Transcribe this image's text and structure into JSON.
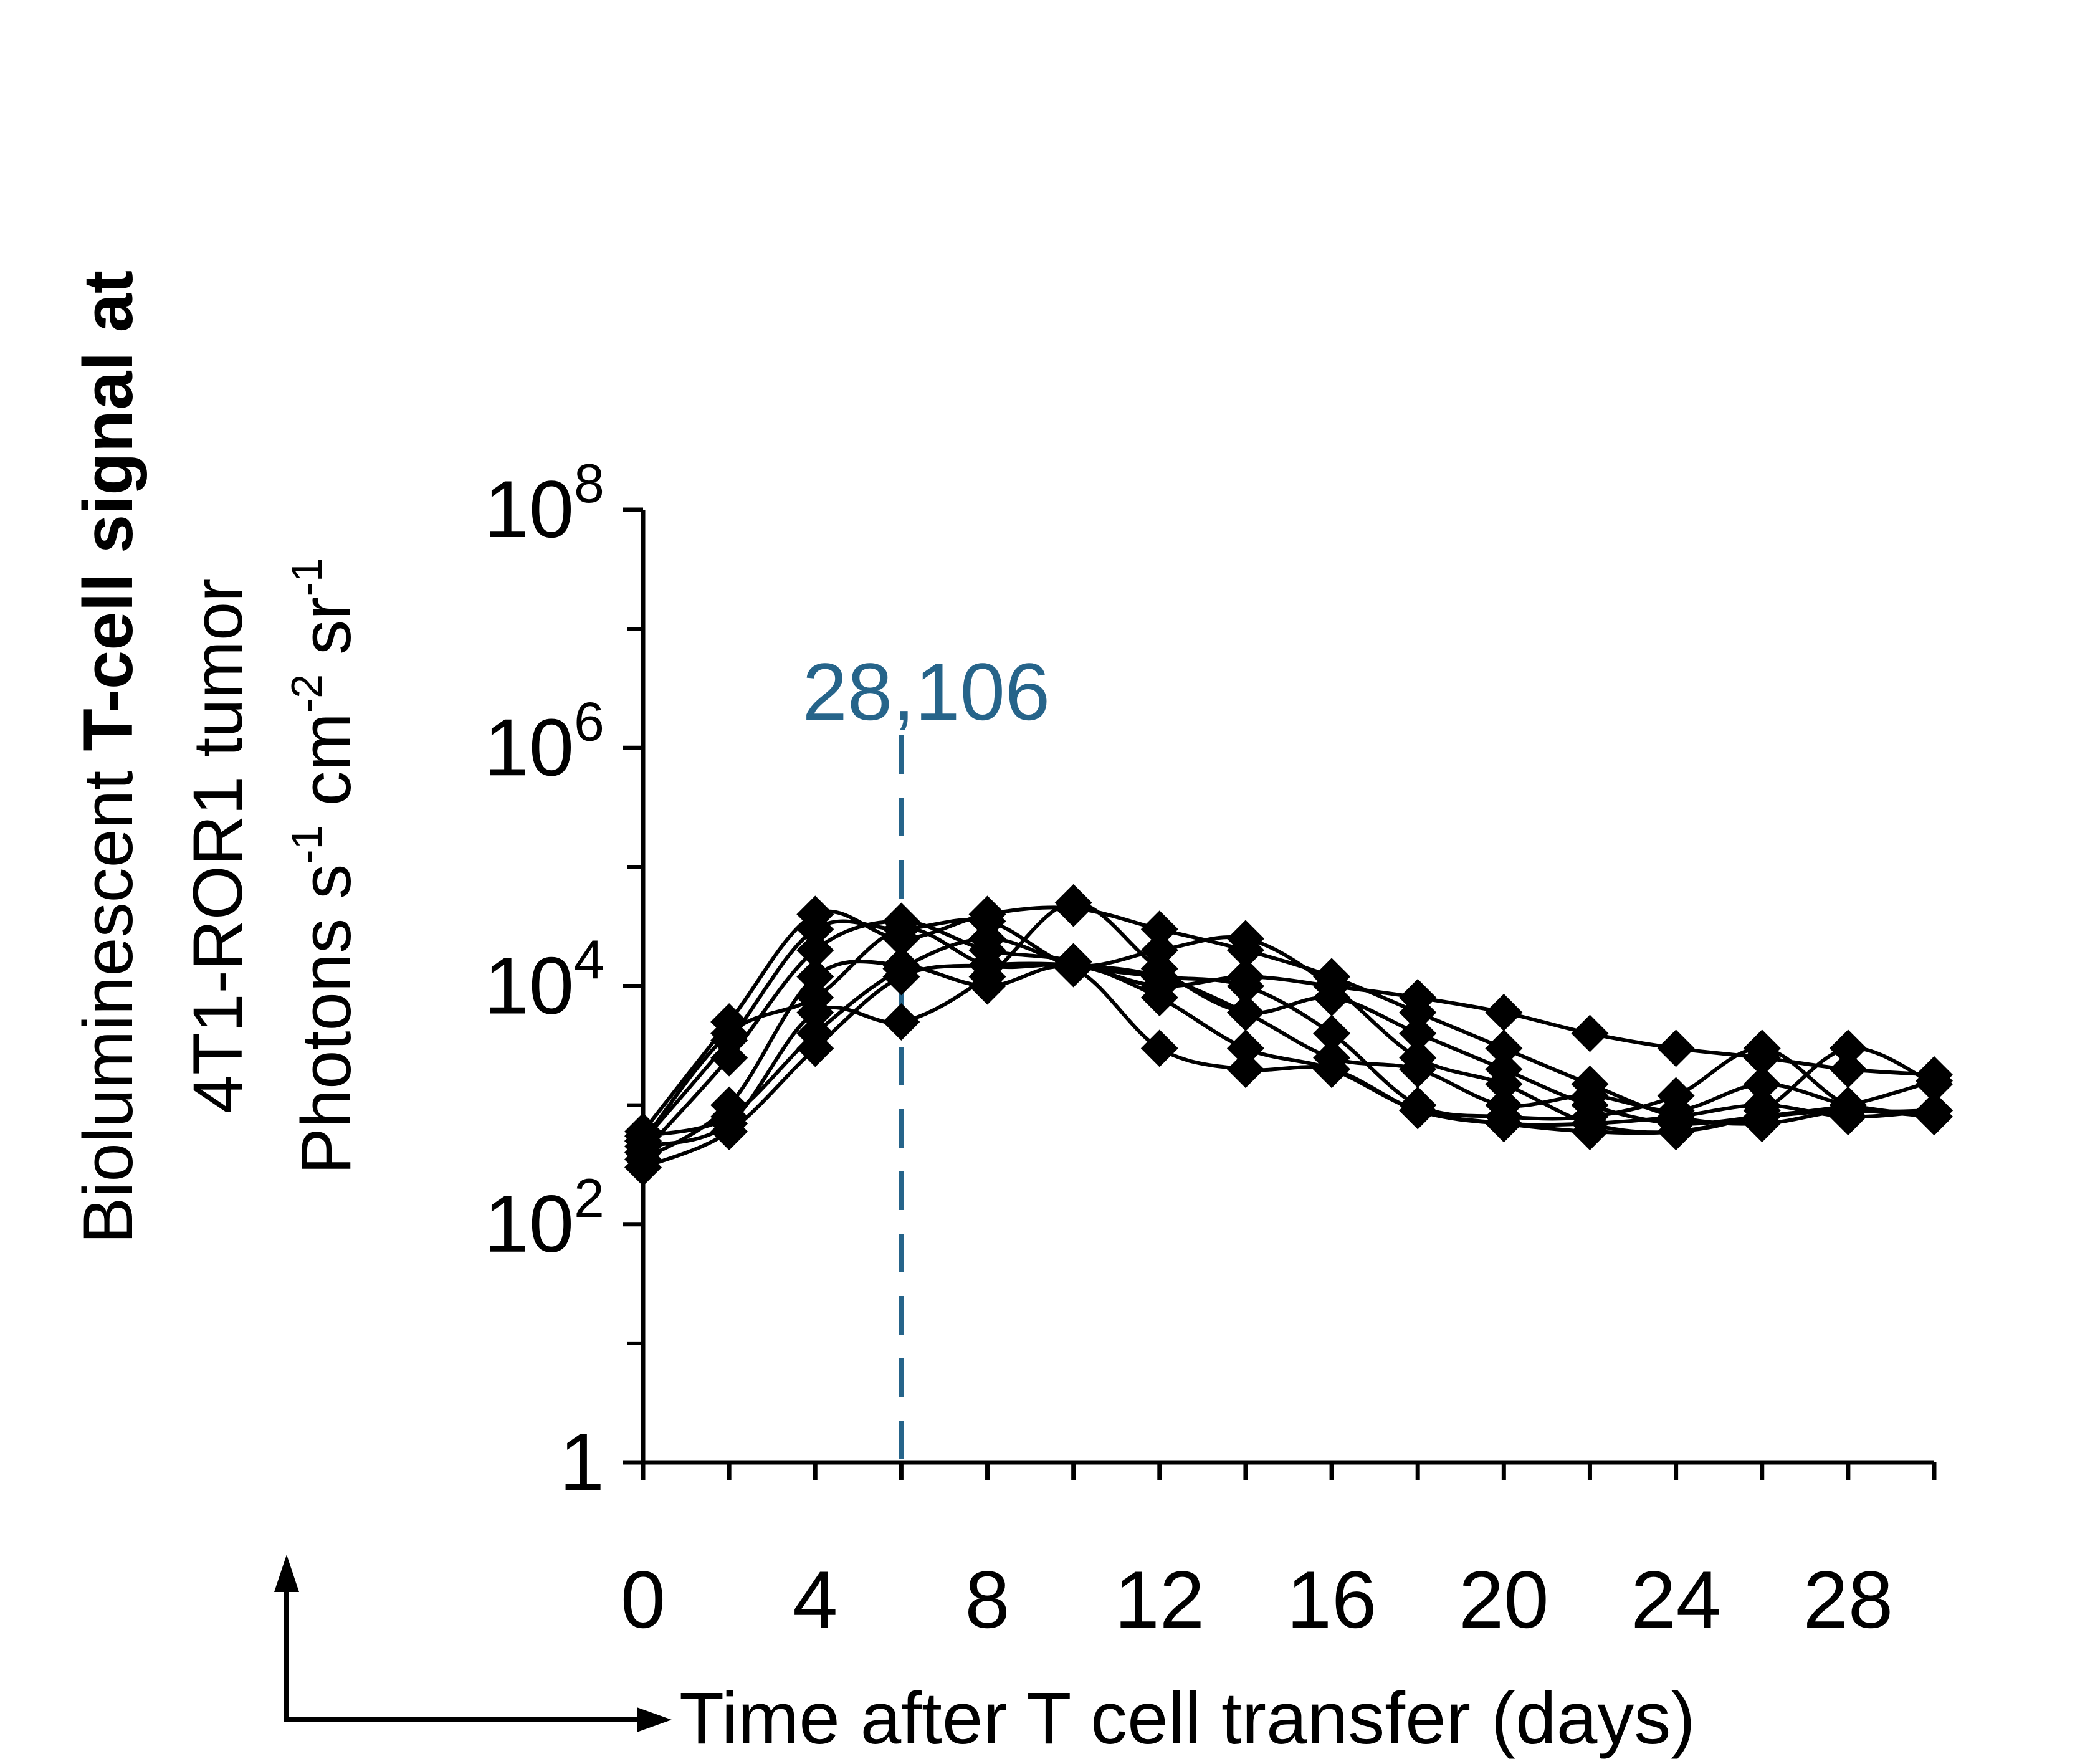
{
  "chart_data": {
    "type": "line",
    "ylabel": {
      "line1_regular": "Bioluminescent ",
      "line1_bold": "T-cell signal at",
      "line2": "4T1-ROR1 tumor",
      "line3_parts": [
        "Photons s",
        "-1",
        " cm",
        "-2",
        " sr",
        "-1"
      ]
    },
    "xlabel": "Time after T cell transfer (days)",
    "y_scale": "log10",
    "ylim": [
      1,
      100000000
    ],
    "xlim": [
      0,
      30
    ],
    "y_tick_labels": [
      {
        "base": "1",
        "exp": "",
        "value": 1
      },
      {
        "base": "10",
        "exp": "2",
        "value": 100
      },
      {
        "base": "10",
        "exp": "4",
        "value": 10000
      },
      {
        "base": "10",
        "exp": "6",
        "value": 1000000
      },
      {
        "base": "10",
        "exp": "8",
        "value": 100000000
      }
    ],
    "y_minor_ticks": [
      10,
      1000,
      100000,
      10000000
    ],
    "x_tick_labels": [
      "0",
      "4",
      "8",
      "12",
      "16",
      "20",
      "24",
      "28"
    ],
    "x_tick_label_values": [
      0,
      4,
      8,
      12,
      16,
      20,
      24,
      28
    ],
    "x_ticks": [
      0,
      2,
      4,
      6,
      8,
      10,
      12,
      14,
      16,
      18,
      20,
      22,
      24,
      26,
      28,
      30
    ],
    "annotation": {
      "text": "28,106",
      "x": 6,
      "color": "#26648a"
    },
    "line_color": "#000000",
    "marker": "diamond",
    "x": [
      0,
      2,
      4,
      6,
      8,
      10,
      12,
      14,
      16,
      18,
      20,
      22,
      24,
      26,
      28,
      30
    ],
    "series": [
      {
        "values": [
          600,
          5000,
          40000,
          25000,
          40000,
          45000,
          30000,
          20000,
          12000,
          6000,
          3000,
          1500,
          800,
          700,
          900,
          800
        ]
      },
      {
        "values": [
          500,
          3500,
          30000,
          30000,
          35000,
          15000,
          20000,
          25000,
          10000,
          2500,
          1500,
          700,
          600,
          900,
          3000,
          1500
        ]
      },
      {
        "values": [
          400,
          2500,
          20000,
          35000,
          20000,
          16000,
          8000,
          3000,
          2000,
          900,
          700,
          700,
          800,
          1000,
          800,
          900
        ]
      },
      {
        "values": [
          350,
          1000,
          12000,
          15000,
          10000,
          14000,
          3000,
          2000,
          2000,
          900,
          700,
          600,
          600,
          800,
          1000,
          1600
        ]
      },
      {
        "values": [
          450,
          700,
          6000,
          5000,
          12000,
          50000,
          14000,
          6000,
          8000,
          4000,
          2000,
          1000,
          700,
          800,
          900,
          800
        ]
      },
      {
        "values": [
          550,
          800,
          4000,
          14000,
          25000,
          15000,
          12000,
          10000,
          4000,
          1000,
          800,
          800,
          1200,
          3000,
          1000,
          900
        ]
      },
      {
        "values": [
          300,
          600,
          3000,
          12000,
          15000,
          15000,
          12000,
          6000,
          2500,
          2000,
          1000,
          1200,
          900,
          1500,
          1000,
          800
        ]
      },
      {
        "values": [
          500,
          4000,
          8000,
          30000,
          15000,
          15000,
          10000,
          12000,
          10000,
          8000,
          6000,
          4000,
          3000,
          2500,
          2000,
          1800
        ]
      }
    ]
  }
}
